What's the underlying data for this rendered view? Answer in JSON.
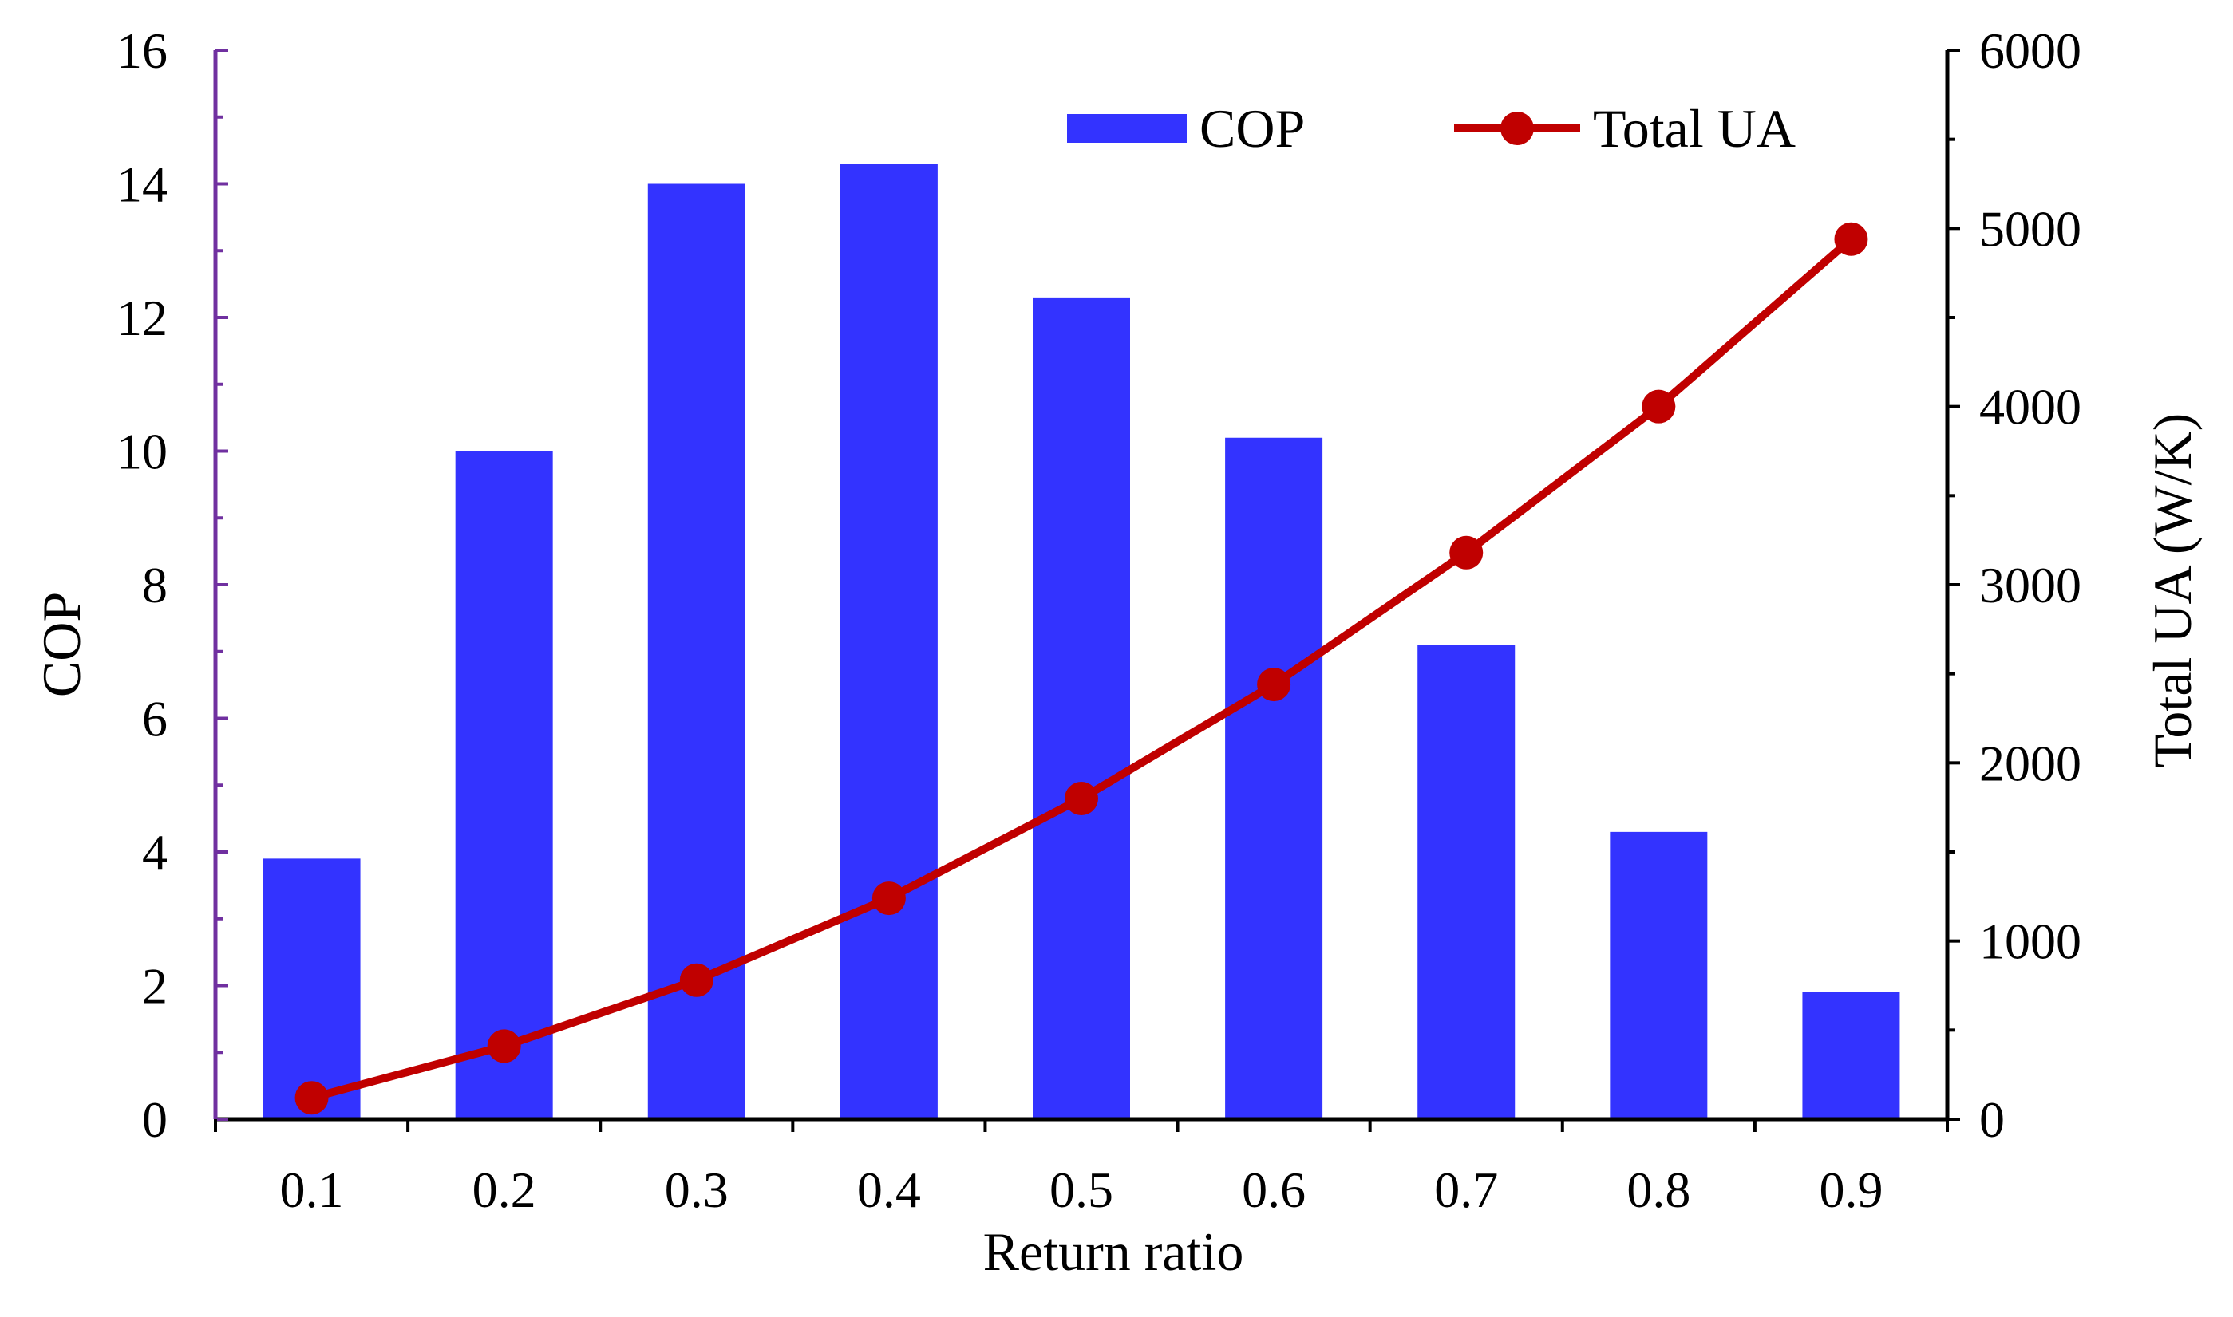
{
  "chart_data": {
    "type": "bar+line",
    "categories": [
      "0.1",
      "0.2",
      "0.3",
      "0.4",
      "0.5",
      "0.6",
      "0.7",
      "0.8",
      "0.9"
    ],
    "series": [
      {
        "name": "COP",
        "kind": "bar",
        "axis": "left",
        "color": "#3333ff",
        "values": [
          3.9,
          10.0,
          14.0,
          14.3,
          12.3,
          10.2,
          7.1,
          4.3,
          1.9
        ]
      },
      {
        "name": "Total UA",
        "kind": "line",
        "axis": "right",
        "color": "#c00000",
        "values": [
          120,
          410,
          780,
          1240,
          1800,
          2440,
          3180,
          4000,
          4940
        ]
      }
    ],
    "xlabel": "Return ratio",
    "ylabel_left": "COP",
    "ylabel_right": "Total UA (W/K)",
    "ylim_left": [
      0,
      16
    ],
    "yticks_left": [
      0,
      2,
      4,
      6,
      8,
      10,
      12,
      14,
      16
    ],
    "ylim_right": [
      0,
      6000
    ],
    "yticks_right": [
      0,
      1000,
      2000,
      3000,
      4000,
      5000,
      6000
    ],
    "legend": {
      "position": "top-right",
      "entries": [
        "COP",
        "Total UA"
      ]
    },
    "grid": false
  }
}
